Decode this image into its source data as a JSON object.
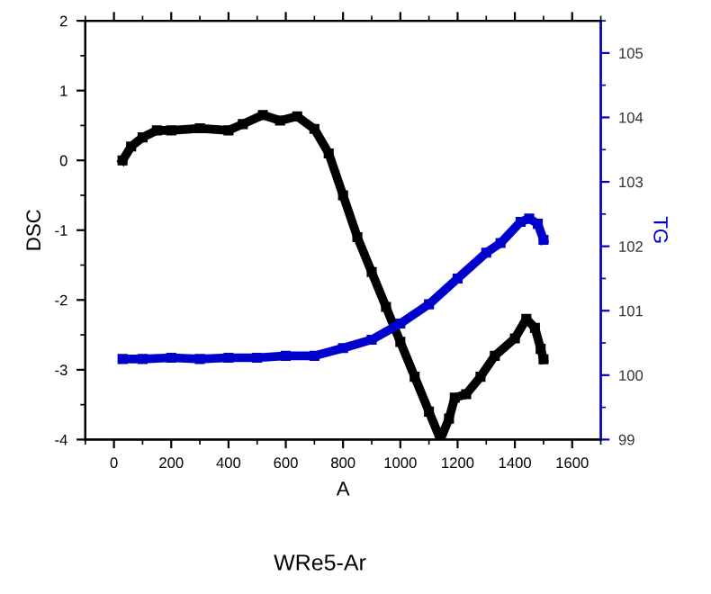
{
  "chart_data": {
    "type": "line",
    "xlabel": "A",
    "ylabel": "DSC",
    "y2label": "TG",
    "annotations": [
      "WRe5-Ar"
    ],
    "xlim": [
      -100,
      1700
    ],
    "xticks": [
      0,
      200,
      400,
      600,
      800,
      1000,
      1200,
      1400,
      1600
    ],
    "ylim": [
      -4,
      2
    ],
    "yticks": [
      -4,
      -3,
      -2,
      -1,
      0,
      1,
      2
    ],
    "y2lim": [
      99,
      105.5
    ],
    "y2ticks": [
      99,
      100,
      101,
      102,
      103,
      104,
      105
    ],
    "marker": "square",
    "grid": false,
    "legend": false,
    "series": [
      {
        "color": "#000000",
        "x": [
          30,
          60,
          100,
          150,
          200,
          300,
          400,
          450,
          520,
          580,
          640,
          700,
          750,
          800,
          850,
          900,
          950,
          1000,
          1050,
          1100,
          1140,
          1170,
          1190,
          1230,
          1280,
          1330,
          1400,
          1440,
          1470,
          1490,
          1500
        ],
        "values": [
          0.0,
          0.2,
          0.33,
          0.43,
          0.43,
          0.46,
          0.43,
          0.52,
          0.65,
          0.57,
          0.63,
          0.45,
          0.1,
          -0.5,
          -1.1,
          -1.6,
          -2.1,
          -2.6,
          -3.1,
          -3.6,
          -4.0,
          -3.7,
          -3.4,
          -3.35,
          -3.1,
          -2.8,
          -2.55,
          -2.27,
          -2.4,
          -2.7,
          -2.85
        ]
      },
      {
        "color": "#0000cc",
        "axis": "y2",
        "x": [
          30,
          100,
          200,
          300,
          400,
          500,
          600,
          700,
          800,
          900,
          1000,
          1100,
          1200,
          1300,
          1350,
          1420,
          1450,
          1480,
          1500
        ],
        "values": [
          100.25,
          100.25,
          100.27,
          100.25,
          100.27,
          100.27,
          100.3,
          100.3,
          100.42,
          100.55,
          100.8,
          101.1,
          101.5,
          101.9,
          102.05,
          102.38,
          102.43,
          102.35,
          102.1
        ]
      }
    ]
  }
}
